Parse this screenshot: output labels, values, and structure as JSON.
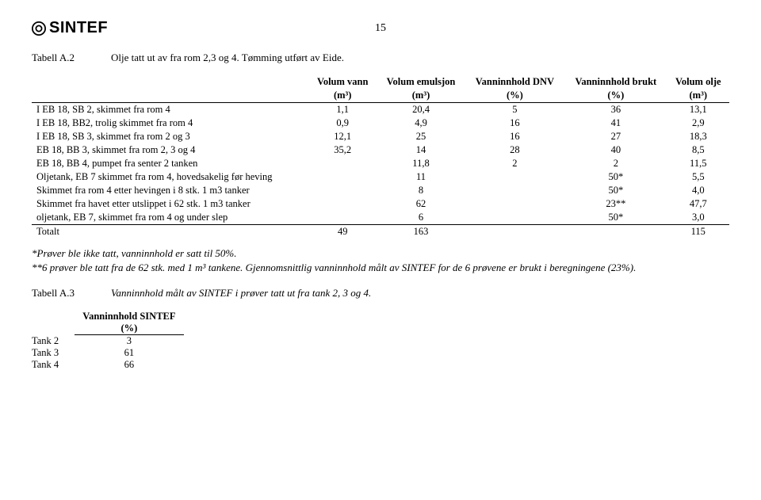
{
  "page_number": "15",
  "brand": "SINTEF",
  "table_a2": {
    "label": "Tabell A.2",
    "caption": "Olje tatt ut av fra rom 2,3 og 4. Tømming utført av Eide.",
    "columns": [
      {
        "top": "Volum vann",
        "bottom": "(m³)"
      },
      {
        "top": "Volum emulsjon",
        "bottom": "(m³)"
      },
      {
        "top": "Vanninnhold DNV",
        "bottom": "(%)"
      },
      {
        "top": "Vanninnhold brukt",
        "bottom": "(%)"
      },
      {
        "top": "Volum olje",
        "bottom": "(m³)"
      }
    ],
    "rows": [
      {
        "label": "I EB 18, SB 2, skimmet fra rom 4",
        "v": [
          "1,1",
          "20,4",
          "5",
          "36",
          "13,1"
        ]
      },
      {
        "label": "I EB 18, BB2, trolig skimmet fra rom 4",
        "v": [
          "0,9",
          "4,9",
          "16",
          "41",
          "2,9"
        ]
      },
      {
        "label": "I EB 18, SB 3, skimmet fra rom 2 og 3",
        "v": [
          "12,1",
          "25",
          "16",
          "27",
          "18,3"
        ]
      },
      {
        "label": "EB 18, BB 3, skimmet fra rom 2, 3 og 4",
        "v": [
          "35,2",
          "14",
          "28",
          "40",
          "8,5"
        ]
      },
      {
        "label": "EB 18, BB 4, pumpet fra senter 2 tanken",
        "v": [
          "",
          "11,8",
          "2",
          "2",
          "11,5"
        ]
      },
      {
        "label": "Oljetank, EB 7 skimmet fra rom 4, hovedsakelig før heving",
        "v": [
          "",
          "11",
          "",
          "50*",
          "5,5"
        ]
      },
      {
        "label": "Skimmet fra rom 4 etter hevingen i 8 stk. 1 m3 tanker",
        "v": [
          "",
          "8",
          "",
          "50*",
          "4,0"
        ]
      },
      {
        "label": "Skimmet fra havet etter utslippet i 62 stk. 1 m3 tanker",
        "v": [
          "",
          "62",
          "",
          "23**",
          "47,7"
        ]
      },
      {
        "label": "oljetank, EB 7, skimmet fra rom 4 og under slep",
        "v": [
          "",
          "6",
          "",
          "50*",
          "3,0"
        ]
      }
    ],
    "total": {
      "label": "Totalt",
      "v": [
        "49",
        "163",
        "",
        "",
        "115"
      ]
    }
  },
  "notes": {
    "line1": "*Prøver ble ikke tatt, vanninnhold er satt til 50%.",
    "line2": "**6 prøver ble tatt fra de 62 stk. med 1 m³ tankene. Gjennomsnittlig vanninnhold målt av SINTEF for de 6 prøvene er brukt i beregningene (23%)."
  },
  "table_a3": {
    "label": "Tabell A.3",
    "caption": "Vanninnhold målt av SINTEF i prøver tatt ut fra tank 2, 3 og 4.",
    "col_head_top": "Vanninnhold SINTEF",
    "col_head_bottom": "(%)",
    "rows": [
      {
        "label": "Tank 2",
        "val": "3"
      },
      {
        "label": "Tank 3",
        "val": "61"
      },
      {
        "label": "Tank 4",
        "val": "66"
      }
    ]
  }
}
